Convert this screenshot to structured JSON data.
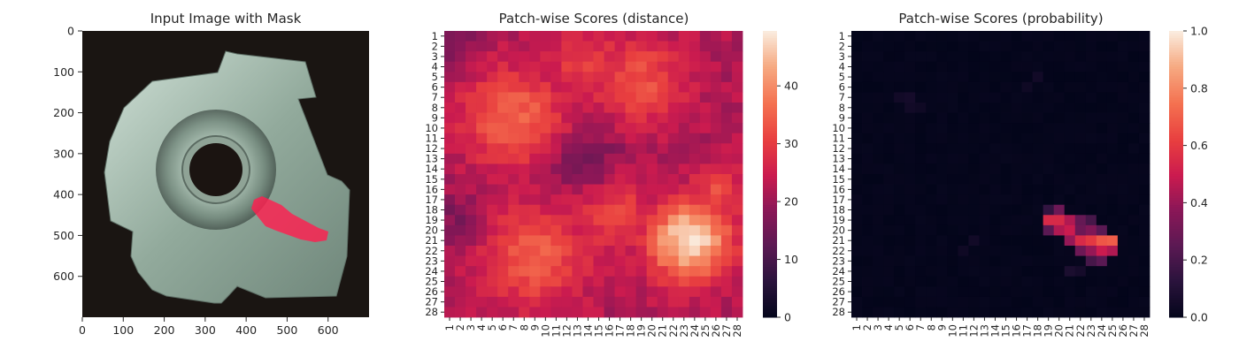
{
  "panels": {
    "image": {
      "title": "Input Image with Mask",
      "xticks": [
        0,
        100,
        200,
        300,
        400,
        500,
        600
      ],
      "yticks": [
        0,
        100,
        200,
        300,
        400,
        500,
        600
      ],
      "image_size": [
        700,
        700
      ],
      "mask_color": "#ff1f4f",
      "object_color": "#9db3a6",
      "background_color": "#1a1512"
    },
    "distance": {
      "title": "Patch-wise Scores (distance)",
      "colorbar_ticks": [
        0,
        10,
        20,
        30,
        40
      ],
      "vmin": 0,
      "vmax": 49.5,
      "colormap": "rocket"
    },
    "probability": {
      "title": "Patch-wise Scores (probability)",
      "colorbar_ticks": [
        "0.0",
        "0.2",
        "0.4",
        "0.6",
        "0.8",
        "1.0"
      ],
      "vmin": 0,
      "vmax": 1,
      "colormap": "rocket"
    }
  },
  "chart_data": [
    {
      "type": "image",
      "title": "Input Image with Mask",
      "xlim": [
        0,
        700
      ],
      "ylim": [
        700,
        0
      ],
      "xticks": [
        0,
        100,
        200,
        300,
        400,
        500,
        600
      ],
      "yticks": [
        0,
        100,
        200,
        300,
        400,
        500,
        600
      ],
      "mask_region": "anomaly along lower-right inner surface, approx x 420-600, y 410-510"
    },
    {
      "type": "heatmap",
      "title": "Patch-wise Scores (distance)",
      "rows": 28,
      "cols": 28,
      "tick_labels": [
        "1",
        "2",
        "3",
        "4",
        "5",
        "6",
        "7",
        "8",
        "9",
        "10",
        "11",
        "12",
        "13",
        "14",
        "15",
        "16",
        "17",
        "18",
        "19",
        "20",
        "21",
        "22",
        "23",
        "24",
        "25",
        "26",
        "27",
        "28"
      ],
      "value_range": [
        0,
        49.5
      ],
      "base_value": 22,
      "high_regions": [
        {
          "row": 9,
          "col": 7,
          "peak": 36,
          "spread": 3.3
        },
        {
          "row": 5.5,
          "col": 19,
          "peak": 33,
          "spread": 3.0
        },
        {
          "row": 4,
          "col": 14,
          "peak": 30,
          "spread": 3.0
        },
        {
          "row": 21,
          "col": 23.5,
          "peak": 49,
          "spread": 2.7
        },
        {
          "row": 22.5,
          "col": 9,
          "peak": 35,
          "spread": 3.4
        },
        {
          "row": 16.5,
          "col": 26,
          "peak": 32,
          "spread": 2.0
        },
        {
          "row": 18,
          "col": 16,
          "peak": 31,
          "spread": 3.0
        }
      ],
      "low_regions": [
        {
          "row": 13.5,
          "col": 14,
          "depth": 8,
          "spread": 2.2
        },
        {
          "row": 1,
          "col": 1,
          "depth": 5,
          "spread": 2.0
        },
        {
          "row": 19,
          "col": 1.5,
          "depth": 5,
          "spread": 2.0
        }
      ]
    },
    {
      "type": "heatmap",
      "title": "Patch-wise Scores (probability)",
      "rows": 28,
      "cols": 28,
      "tick_labels": [
        "1",
        "2",
        "3",
        "4",
        "5",
        "6",
        "7",
        "8",
        "9",
        "10",
        "11",
        "12",
        "13",
        "14",
        "15",
        "16",
        "17",
        "18",
        "19",
        "20",
        "21",
        "22",
        "23",
        "24",
        "25",
        "26",
        "27",
        "28"
      ],
      "value_range": [
        0,
        1
      ],
      "cells": [
        {
          "row": 19,
          "col": 19,
          "value": 0.55
        },
        {
          "row": 19,
          "col": 20,
          "value": 0.55
        },
        {
          "row": 19,
          "col": 21,
          "value": 0.45
        },
        {
          "row": 19,
          "col": 22,
          "value": 0.28
        },
        {
          "row": 19,
          "col": 23,
          "value": 0.2
        },
        {
          "row": 18,
          "col": 20,
          "value": 0.3
        },
        {
          "row": 18,
          "col": 19,
          "value": 0.15
        },
        {
          "row": 20,
          "col": 19,
          "value": 0.25
        },
        {
          "row": 20,
          "col": 20,
          "value": 0.45
        },
        {
          "row": 20,
          "col": 21,
          "value": 0.5
        },
        {
          "row": 20,
          "col": 22,
          "value": 0.3
        },
        {
          "row": 20,
          "col": 23,
          "value": 0.35
        },
        {
          "row": 20,
          "col": 24,
          "value": 0.25
        },
        {
          "row": 21,
          "col": 21,
          "value": 0.4
        },
        {
          "row": 21,
          "col": 22,
          "value": 0.55
        },
        {
          "row": 21,
          "col": 23,
          "value": 0.6
        },
        {
          "row": 21,
          "col": 24,
          "value": 0.68
        },
        {
          "row": 21,
          "col": 25,
          "value": 0.7
        },
        {
          "row": 22,
          "col": 22,
          "value": 0.3
        },
        {
          "row": 22,
          "col": 23,
          "value": 0.4
        },
        {
          "row": 22,
          "col": 24,
          "value": 0.5
        },
        {
          "row": 22,
          "col": 25,
          "value": 0.45
        },
        {
          "row": 23,
          "col": 23,
          "value": 0.2
        },
        {
          "row": 23,
          "col": 24,
          "value": 0.25
        },
        {
          "row": 7,
          "col": 5,
          "value": 0.05
        },
        {
          "row": 7,
          "col": 6,
          "value": 0.06
        },
        {
          "row": 8,
          "col": 6,
          "value": 0.05
        },
        {
          "row": 8,
          "col": 7,
          "value": 0.04
        },
        {
          "row": 6,
          "col": 17,
          "value": 0.04
        },
        {
          "row": 5,
          "col": 18,
          "value": 0.05
        },
        {
          "row": 21,
          "col": 12,
          "value": 0.05
        },
        {
          "row": 22,
          "col": 11,
          "value": 0.04
        },
        {
          "row": 24,
          "col": 21,
          "value": 0.08
        },
        {
          "row": 24,
          "col": 22,
          "value": 0.06
        }
      ],
      "background_value": 0.01
    }
  ]
}
